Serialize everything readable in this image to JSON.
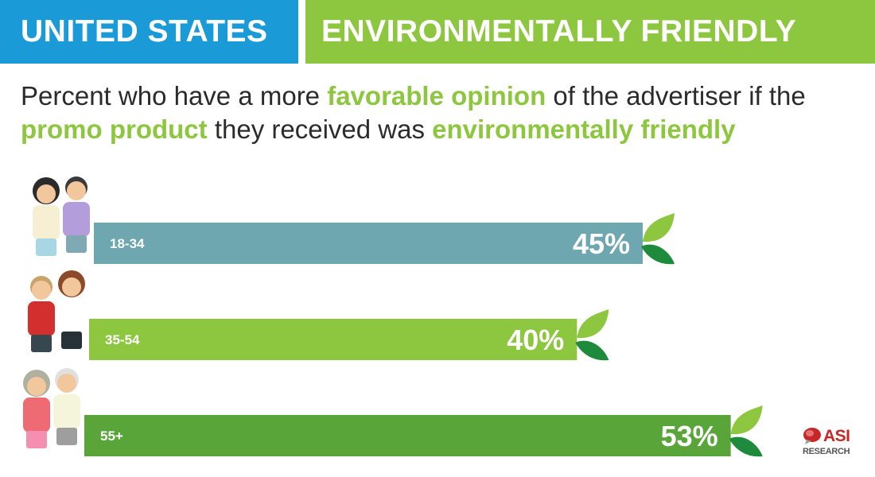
{
  "header": {
    "left_label": "UNITED STATES",
    "right_label": "ENVIRONMENTALLY FRIENDLY"
  },
  "subtitle": {
    "part1": "Percent who have a more ",
    "hl1": "favorable opinion",
    "part2": " of the advertiser if the ",
    "hl2": "promo product",
    "part3": " they received was ",
    "hl3": "environmentally friendly"
  },
  "chart_data": {
    "type": "bar",
    "orientation": "horizontal",
    "categories": [
      "18-34",
      "35-54",
      "55+"
    ],
    "values": [
      45,
      40,
      53
    ],
    "value_labels": [
      "45%",
      "40%",
      "53%"
    ],
    "unit": "%",
    "xlim": [
      0,
      60
    ],
    "grid": false,
    "legend": "none",
    "bar_colors": [
      "#6fa7b0",
      "#8dc63f",
      "#5aa53a"
    ]
  },
  "colors": {
    "header_blue": "#1a9ad6",
    "header_green": "#8dc63f",
    "highlight_green": "#8dc63f",
    "leaf_dark": "#1e8a3c",
    "leaf_light": "#8dc63f"
  },
  "logo": {
    "name": "ASI",
    "tagline": "RESEARCH",
    "icon": "speech-bubble-logo-icon"
  }
}
